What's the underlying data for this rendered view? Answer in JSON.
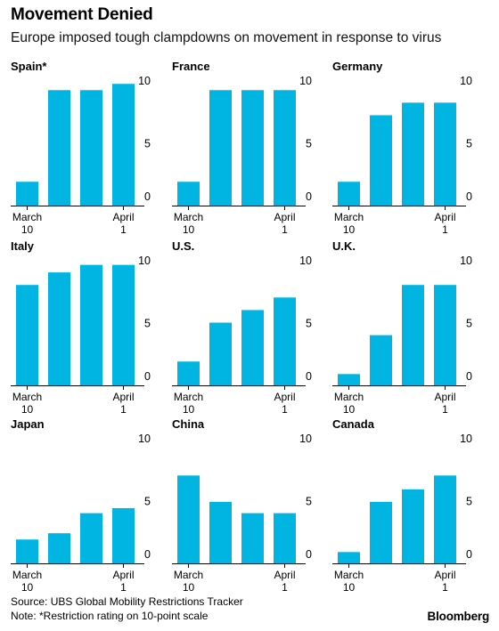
{
  "title": "Movement Denied",
  "subtitle": "Europe imposed tough clampdowns on movement in response to virus",
  "source": "Source: UBS Global Mobility Restrictions Tracker",
  "note": "Note: *Restriction rating on 10-point scale",
  "brand": "Bloomberg",
  "colors": {
    "bar": "#00b5e2",
    "axis": "#000000"
  },
  "chart_data": [
    {
      "type": "bar",
      "title": "Spain*",
      "values": [
        1.9,
        9.2,
        9.2,
        9.7
      ],
      "ylim": [
        0,
        10
      ],
      "yticks": [
        "10",
        "5",
        "0"
      ],
      "xlabels": [
        [
          "March",
          "10"
        ],
        [
          "April",
          "1"
        ]
      ]
    },
    {
      "type": "bar",
      "title": "France",
      "values": [
        1.9,
        9.2,
        9.2,
        9.2
      ],
      "ylim": [
        0,
        10
      ],
      "yticks": [
        "10",
        "5",
        "0"
      ],
      "xlabels": [
        [
          "March",
          "10"
        ],
        [
          "April",
          "1"
        ]
      ]
    },
    {
      "type": "bar",
      "title": "Germany",
      "values": [
        1.9,
        7.2,
        8.2,
        8.2
      ],
      "ylim": [
        0,
        10
      ],
      "yticks": [
        "10",
        "5",
        "0"
      ],
      "xlabels": [
        [
          "March",
          "10"
        ],
        [
          "April",
          "1"
        ]
      ]
    },
    {
      "type": "bar",
      "title": "Italy",
      "values": [
        8.0,
        9.0,
        9.6,
        9.6
      ],
      "ylim": [
        0,
        10
      ],
      "yticks": [
        "10",
        "5",
        "0"
      ],
      "xlabels": [
        [
          "March",
          "10"
        ],
        [
          "April",
          "1"
        ]
      ]
    },
    {
      "type": "bar",
      "title": "U.S.",
      "values": [
        1.9,
        5.0,
        6.0,
        7.0
      ],
      "ylim": [
        0,
        10
      ],
      "yticks": [
        "10",
        "5",
        "0"
      ],
      "xlabels": [
        [
          "March",
          "10"
        ],
        [
          "April",
          "1"
        ]
      ]
    },
    {
      "type": "bar",
      "title": "U.K.",
      "values": [
        0.9,
        4.0,
        8.0,
        8.0
      ],
      "ylim": [
        0,
        10
      ],
      "yticks": [
        "10",
        "5",
        "0"
      ],
      "xlabels": [
        [
          "March",
          "10"
        ],
        [
          "April",
          "1"
        ]
      ]
    },
    {
      "type": "bar",
      "title": "Japan",
      "values": [
        1.9,
        2.4,
        4.0,
        4.4
      ],
      "ylim": [
        0,
        10
      ],
      "yticks": [
        "10",
        "5",
        "0"
      ],
      "xlabels": [
        [
          "March",
          "10"
        ],
        [
          "April",
          "1"
        ]
      ]
    },
    {
      "type": "bar",
      "title": "China",
      "values": [
        7.0,
        4.9,
        4.0,
        4.0
      ],
      "ylim": [
        0,
        10
      ],
      "yticks": [
        "10",
        "5",
        "0"
      ],
      "xlabels": [
        [
          "March",
          "10"
        ],
        [
          "April",
          "1"
        ]
      ]
    },
    {
      "type": "bar",
      "title": "Canada",
      "values": [
        0.9,
        4.9,
        5.9,
        7.0
      ],
      "ylim": [
        0,
        10
      ],
      "yticks": [
        "10",
        "5",
        "0"
      ],
      "xlabels": [
        [
          "March",
          "10"
        ],
        [
          "April",
          "1"
        ]
      ]
    }
  ]
}
